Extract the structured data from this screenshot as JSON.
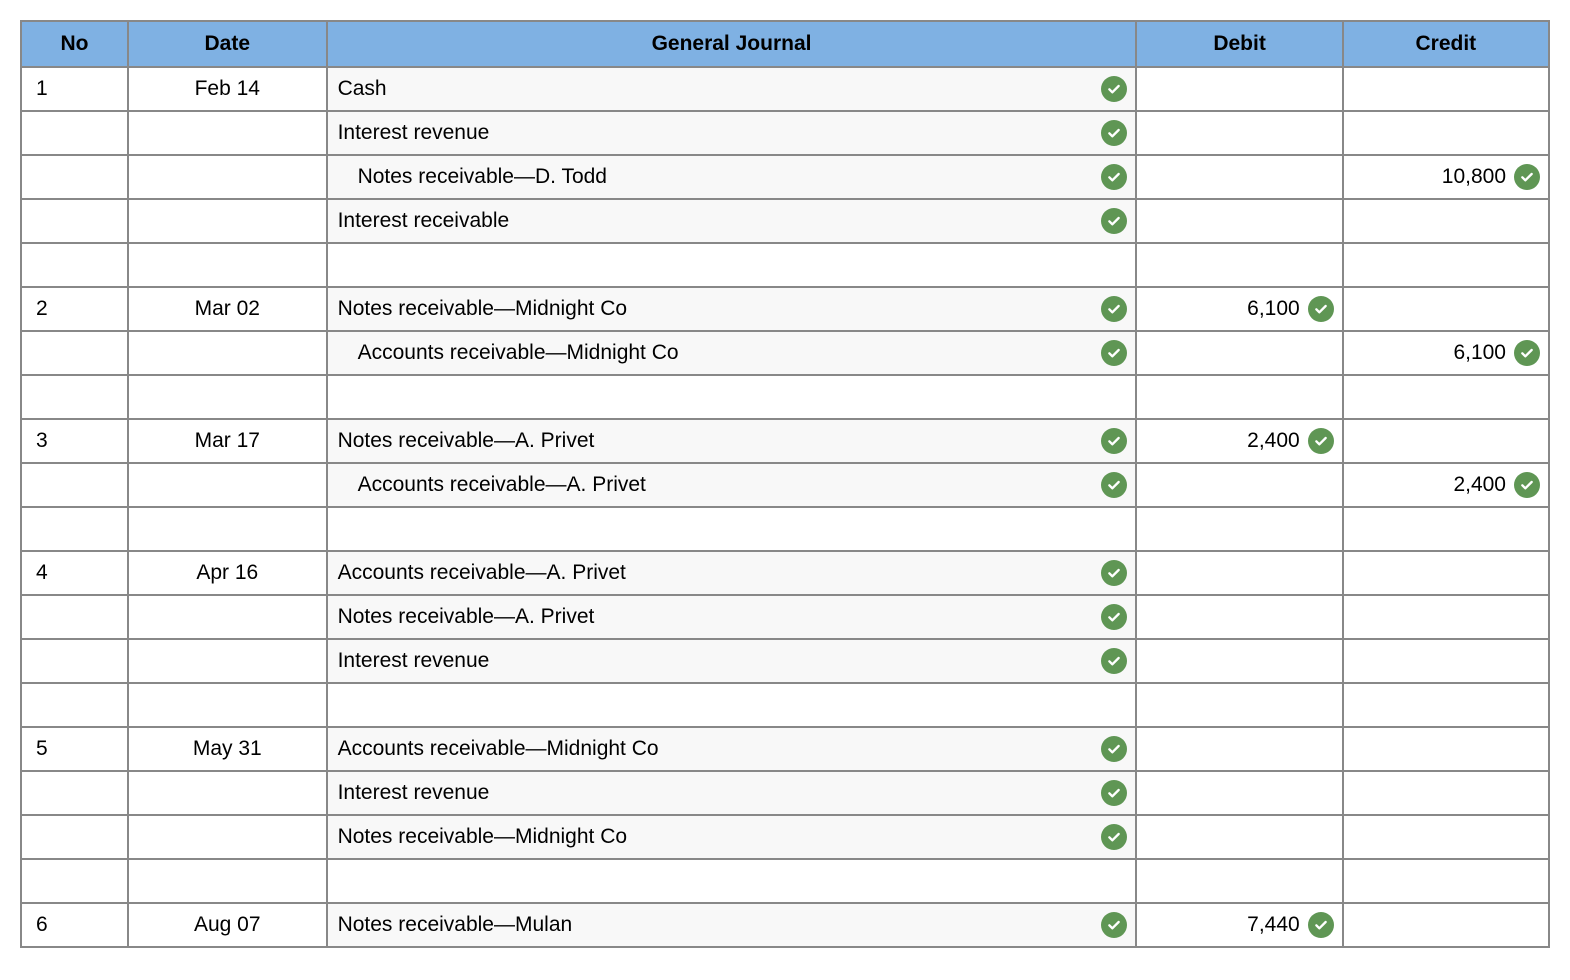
{
  "headers": {
    "no": "No",
    "date": "Date",
    "journal": "General Journal",
    "debit": "Debit",
    "credit": "Credit"
  },
  "colors": {
    "header_bg": "#7fb1e3",
    "border": "#888888",
    "journal_bg": "#f8f8f8",
    "check_bg": "#5f9654"
  },
  "rows": [
    {
      "no": "1",
      "date": "Feb 14",
      "journal": "Cash",
      "journal_check": true,
      "indent": false,
      "debit": "",
      "debit_check": false,
      "credit": "",
      "credit_check": false
    },
    {
      "no": "",
      "date": "",
      "journal": "Interest revenue",
      "journal_check": true,
      "indent": false,
      "debit": "",
      "debit_check": false,
      "credit": "",
      "credit_check": false
    },
    {
      "no": "",
      "date": "",
      "journal": "Notes receivable—D. Todd",
      "journal_check": true,
      "indent": true,
      "debit": "",
      "debit_check": false,
      "credit": "10,800",
      "credit_check": true
    },
    {
      "no": "",
      "date": "",
      "journal": "Interest receivable",
      "journal_check": true,
      "indent": false,
      "debit": "",
      "debit_check": false,
      "credit": "",
      "credit_check": false
    },
    {
      "no": "",
      "date": "",
      "journal": "",
      "journal_check": false,
      "indent": false,
      "debit": "",
      "debit_check": false,
      "credit": "",
      "credit_check": false,
      "blank": true
    },
    {
      "no": "2",
      "date": "Mar 02",
      "journal": "Notes receivable—Midnight Co",
      "journal_check": true,
      "indent": false,
      "debit": "6,100",
      "debit_check": true,
      "credit": "",
      "credit_check": false
    },
    {
      "no": "",
      "date": "",
      "journal": "Accounts receivable—Midnight Co",
      "journal_check": true,
      "indent": true,
      "debit": "",
      "debit_check": false,
      "credit": "6,100",
      "credit_check": true
    },
    {
      "no": "",
      "date": "",
      "journal": "",
      "journal_check": false,
      "indent": false,
      "debit": "",
      "debit_check": false,
      "credit": "",
      "credit_check": false,
      "blank": true
    },
    {
      "no": "3",
      "date": "Mar 17",
      "journal": "Notes receivable—A. Privet",
      "journal_check": true,
      "indent": false,
      "debit": "2,400",
      "debit_check": true,
      "credit": "",
      "credit_check": false
    },
    {
      "no": "",
      "date": "",
      "journal": "Accounts receivable—A. Privet",
      "journal_check": true,
      "indent": true,
      "debit": "",
      "debit_check": false,
      "credit": "2,400",
      "credit_check": true
    },
    {
      "no": "",
      "date": "",
      "journal": "",
      "journal_check": false,
      "indent": false,
      "debit": "",
      "debit_check": false,
      "credit": "",
      "credit_check": false,
      "blank": true
    },
    {
      "no": "4",
      "date": "Apr 16",
      "journal": "Accounts receivable—A. Privet",
      "journal_check": true,
      "indent": false,
      "debit": "",
      "debit_check": false,
      "credit": "",
      "credit_check": false
    },
    {
      "no": "",
      "date": "",
      "journal": "Notes receivable—A. Privet",
      "journal_check": true,
      "indent": false,
      "debit": "",
      "debit_check": false,
      "credit": "",
      "credit_check": false
    },
    {
      "no": "",
      "date": "",
      "journal": "Interest revenue",
      "journal_check": true,
      "indent": false,
      "debit": "",
      "debit_check": false,
      "credit": "",
      "credit_check": false
    },
    {
      "no": "",
      "date": "",
      "journal": "",
      "journal_check": false,
      "indent": false,
      "debit": "",
      "debit_check": false,
      "credit": "",
      "credit_check": false,
      "blank": true
    },
    {
      "no": "5",
      "date": "May 31",
      "journal": "Accounts receivable—Midnight Co",
      "journal_check": true,
      "indent": false,
      "debit": "",
      "debit_check": false,
      "credit": "",
      "credit_check": false
    },
    {
      "no": "",
      "date": "",
      "journal": "Interest revenue",
      "journal_check": true,
      "indent": false,
      "debit": "",
      "debit_check": false,
      "credit": "",
      "credit_check": false
    },
    {
      "no": "",
      "date": "",
      "journal": "Notes receivable—Midnight Co",
      "journal_check": true,
      "indent": false,
      "debit": "",
      "debit_check": false,
      "credit": "",
      "credit_check": false
    },
    {
      "no": "",
      "date": "",
      "journal": "",
      "journal_check": false,
      "indent": false,
      "debit": "",
      "debit_check": false,
      "credit": "",
      "credit_check": false,
      "blank": true
    },
    {
      "no": "6",
      "date": "Aug 07",
      "journal": "Notes receivable—Mulan",
      "journal_check": true,
      "indent": false,
      "debit": "7,440",
      "debit_check": true,
      "credit": "",
      "credit_check": false
    }
  ]
}
